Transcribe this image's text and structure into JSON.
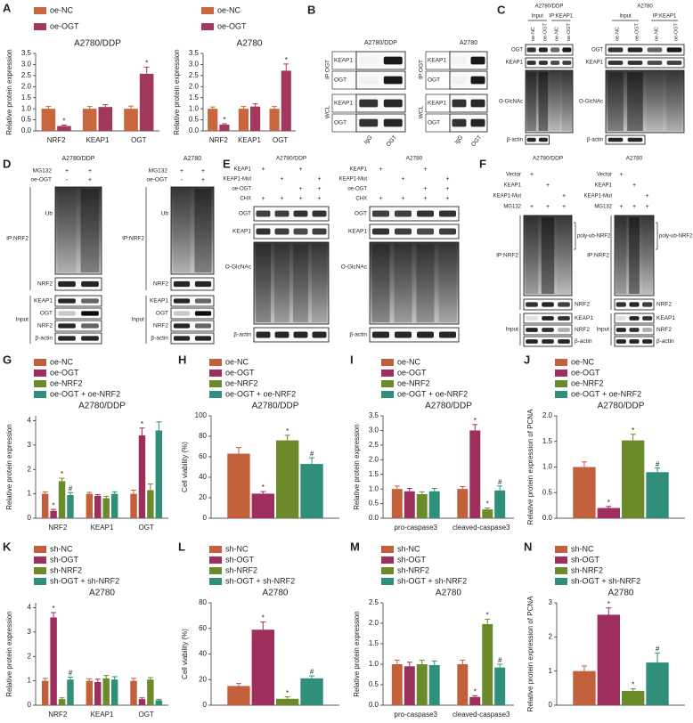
{
  "chart_data": [
    {
      "type": "bar",
      "panel": "A",
      "title": "A2780/DDP",
      "y_label": "Relative protein expression",
      "categories": [
        "NRF2",
        "KEAP1",
        "OGT"
      ],
      "series": [
        {
          "name": "oe-NC",
          "color": "#c8673e",
          "values": [
            1,
            1,
            1
          ],
          "errors": [
            0.1,
            0.1,
            0.12
          ]
        },
        {
          "name": "oe-OGT",
          "color": "#a3385e",
          "values": [
            0.22,
            1.08,
            2.58
          ],
          "errors": [
            0.04,
            0.1,
            0.3
          ],
          "markers": [
            "*",
            null,
            "*"
          ]
        }
      ],
      "ylim": [
        0,
        3.5
      ],
      "yticks": [
        {
          "value": 0,
          "label": "0.0"
        },
        0.5,
        {
          "value": 1,
          "label": "1.0"
        },
        1.5,
        {
          "value": 2,
          "label": "2.0"
        },
        2.5,
        {
          "value": 3,
          "label": "3.0"
        },
        3.5
      ]
    },
    {
      "type": "bar",
      "title": "A2780",
      "y_label": "Relative protein expression",
      "categories": [
        "NRF2",
        "KEAP1",
        "OGT"
      ],
      "series": [
        {
          "name": "oe-NC",
          "color": "#c8673e",
          "values": [
            1,
            1,
            1
          ],
          "errors": [
            0.08,
            0.1,
            0.1
          ]
        },
        {
          "name": "oe-OGT",
          "color": "#a3385e",
          "values": [
            0.28,
            1.1,
            2.72
          ],
          "errors": [
            0.04,
            0.12,
            0.3
          ],
          "markers": [
            "*",
            null,
            "*"
          ]
        }
      ],
      "ylim": [
        0,
        3.5
      ],
      "yticks": [
        {
          "value": 0,
          "label": "0.0"
        },
        0.5,
        {
          "value": 1,
          "label": "1.0"
        },
        1.5,
        {
          "value": 2,
          "label": "2.0"
        },
        2.5,
        {
          "value": 3,
          "label": "3.0"
        },
        3.5
      ]
    },
    {
      "type": "bar",
      "panel": "G",
      "title": "A2780/DDP",
      "y_label": "Relative protein expression",
      "categories": [
        "NRF2",
        "KEAP1",
        "OGT"
      ],
      "series": [
        {
          "name": "oe-NC",
          "color": "#c2603c",
          "values": [
            1,
            1,
            1
          ],
          "errors": [
            0.08,
            0.06,
            0.15
          ]
        },
        {
          "name": "oe-OGT",
          "color": "#9e2f5c",
          "values": [
            0.3,
            0.92,
            3.4
          ],
          "errors": [
            0.06,
            0.05,
            0.3
          ],
          "markers": [
            "*",
            null,
            "*"
          ]
        },
        {
          "name": "oe-NRF2",
          "color": "#6b8a2a",
          "values": [
            1.52,
            0.82,
            1.15
          ],
          "errors": [
            0.12,
            0.08,
            0.25
          ],
          "markers": [
            "*",
            null,
            null
          ]
        },
        {
          "name": "oe-OGT + oe-NRF2",
          "color": "#2f8f7a",
          "values": [
            0.95,
            1.0,
            3.6
          ],
          "errors": [
            0.1,
            0.08,
            0.35
          ],
          "markers": [
            "#",
            null,
            null
          ]
        }
      ],
      "ylim": [
        0,
        4.2
      ],
      "yticks": [
        0,
        1,
        2,
        3,
        4
      ]
    },
    {
      "type": "bar",
      "panel": "H",
      "title": "A2780/DDP",
      "y_label": "Cell viability (%)",
      "categories": [
        null
      ],
      "series": [
        {
          "name": "oe-NC",
          "color": "#c2603c",
          "values": [
            63
          ],
          "errors": [
            6
          ]
        },
        {
          "name": "oe-OGT",
          "color": "#9e2f5c",
          "values": [
            24
          ],
          "errors": [
            2
          ],
          "markers": [
            "*"
          ]
        },
        {
          "name": "oe-NRF2",
          "color": "#6b8a2a",
          "values": [
            76
          ],
          "errors": [
            5
          ],
          "markers": [
            "*"
          ]
        },
        {
          "name": "oe-OGT + oe-NRF2",
          "color": "#2f8f7a",
          "values": [
            53
          ],
          "errors": [
            6
          ],
          "markers": [
            "#"
          ]
        }
      ],
      "ylim": [
        0,
        100
      ],
      "yticks": [
        0,
        20,
        40,
        60,
        80,
        100
      ]
    },
    {
      "type": "bar",
      "panel": "I",
      "title": "A2780/DDP",
      "y_label": "Relative protein expression",
      "categories": [
        "pro-caspase3",
        "cleaved-caspase3"
      ],
      "series": [
        {
          "name": "oe-NC",
          "color": "#c2603c",
          "values": [
            1,
            1
          ],
          "errors": [
            0.1,
            0.08
          ]
        },
        {
          "name": "oe-OGT",
          "color": "#9e2f5c",
          "values": [
            0.92,
            3.0
          ],
          "errors": [
            0.1,
            0.2
          ],
          "markers": [
            null,
            "*"
          ]
        },
        {
          "name": "oe-NRF2",
          "color": "#6b8a2a",
          "values": [
            0.82,
            0.3
          ],
          "errors": [
            0.08,
            0.05
          ],
          "markers": [
            null,
            "*"
          ]
        },
        {
          "name": "oe-OGT + oe-NRF2",
          "color": "#2f8f7a",
          "values": [
            0.92,
            0.95
          ],
          "errors": [
            0.1,
            0.15
          ],
          "markers": [
            null,
            "#"
          ]
        }
      ],
      "ylim": [
        0,
        3.5
      ],
      "yticks": [
        {
          "value": 0,
          "label": "0.0"
        },
        0.5,
        {
          "value": 1,
          "label": "1.0"
        },
        1.5,
        {
          "value": 2,
          "label": "2.0"
        },
        2.5,
        {
          "value": 3,
          "label": "3.0"
        },
        3.5
      ]
    },
    {
      "type": "bar",
      "panel": "J",
      "title": "A2780/DDP",
      "y_label": "Relative protein expression of PCNA",
      "categories": [
        null
      ],
      "series": [
        {
          "name": "oe-NC",
          "color": "#c2603c",
          "values": [
            1.0
          ],
          "errors": [
            0.1
          ]
        },
        {
          "name": "oe-OGT",
          "color": "#9e2f5c",
          "values": [
            0.2
          ],
          "errors": [
            0.03
          ],
          "markers": [
            "*"
          ]
        },
        {
          "name": "oe-NRF2",
          "color": "#6b8a2a",
          "values": [
            1.52
          ],
          "errors": [
            0.12
          ],
          "markers": [
            "*"
          ]
        },
        {
          "name": "oe-OGT + oe-NRF2",
          "color": "#2f8f7a",
          "values": [
            0.9
          ],
          "errors": [
            0.08
          ],
          "markers": [
            "#"
          ]
        }
      ],
      "ylim": [
        0,
        2.0
      ],
      "yticks": [
        {
          "value": 0,
          "label": "0.0"
        },
        0.5,
        {
          "value": 1,
          "label": "1.0"
        },
        1.5,
        {
          "value": 2,
          "label": "2.0"
        }
      ]
    },
    {
      "type": "bar",
      "panel": "K",
      "title": "A2780",
      "y_label": "Relative protein expression",
      "categories": [
        "NRF2",
        "KEAP1",
        "OGT"
      ],
      "series": [
        {
          "name": "sh-NC",
          "color": "#c2603c",
          "values": [
            1,
            1,
            1
          ],
          "errors": [
            0.1,
            0.08,
            0.1
          ]
        },
        {
          "name": "sh-OGT",
          "color": "#9e2f5c",
          "values": [
            3.6,
            0.95,
            0.25
          ],
          "errors": [
            0.2,
            0.12,
            0.05
          ],
          "markers": [
            "*",
            null,
            null
          ]
        },
        {
          "name": "sh-NRF2",
          "color": "#6b8a2a",
          "values": [
            0.25,
            1.1,
            1.05
          ],
          "errors": [
            0.05,
            0.12,
            0.08
          ]
        },
        {
          "name": "sh-OGT + sh-NRF2",
          "color": "#2f8f7a",
          "values": [
            1.05,
            1.05,
            0.2
          ],
          "errors": [
            0.1,
            0.12,
            0.04
          ],
          "markers": [
            "#",
            null,
            null
          ]
        }
      ],
      "ylim": [
        0,
        4.2
      ],
      "yticks": [
        0,
        1,
        2,
        3,
        4
      ]
    },
    {
      "type": "bar",
      "panel": "L",
      "title": "A2780",
      "y_label": "Cell viability (%)",
      "categories": [
        null
      ],
      "series": [
        {
          "name": "sh-NC",
          "color": "#c2603c",
          "values": [
            15
          ],
          "errors": [
            2
          ]
        },
        {
          "name": "sh-OGT",
          "color": "#9e2f5c",
          "values": [
            59
          ],
          "errors": [
            6
          ],
          "markers": [
            "*"
          ]
        },
        {
          "name": "sh-NRF2",
          "color": "#6b8a2a",
          "values": [
            5
          ],
          "errors": [
            1.5
          ],
          "markers": [
            "*"
          ]
        },
        {
          "name": "sh-OGT + sh-NRF2",
          "color": "#2f8f7a",
          "values": [
            21
          ],
          "errors": [
            2
          ],
          "markers": [
            "#"
          ]
        }
      ],
      "ylim": [
        0,
        80
      ],
      "yticks": [
        0,
        20,
        40,
        60,
        80
      ]
    },
    {
      "type": "bar",
      "panel": "M",
      "title": "A2780",
      "y_label": "Relative protein expression",
      "categories": [
        "pro-caspase3",
        "cleaved-caspase3"
      ],
      "series": [
        {
          "name": "sh-NC",
          "color": "#c2603c",
          "values": [
            1,
            1
          ],
          "errors": [
            0.1,
            0.1
          ]
        },
        {
          "name": "sh-OGT",
          "color": "#9e2f5c",
          "values": [
            0.95,
            0.2
          ],
          "errors": [
            0.1,
            0.03
          ],
          "markers": [
            null,
            "*"
          ]
        },
        {
          "name": "sh-NRF2",
          "color": "#6b8a2a",
          "values": [
            1.0,
            1.98
          ],
          "errors": [
            0.1,
            0.12
          ],
          "markers": [
            null,
            "*"
          ]
        },
        {
          "name": "sh-OGT + sh-NRF2",
          "color": "#2f8f7a",
          "values": [
            0.98,
            0.92
          ],
          "errors": [
            0.1,
            0.08
          ],
          "markers": [
            null,
            "#"
          ]
        }
      ],
      "ylim": [
        0,
        2.5
      ],
      "yticks": [
        {
          "value": 0,
          "label": "0.0"
        },
        0.5,
        {
          "value": 1,
          "label": "1.0"
        },
        1.5,
        {
          "value": 2,
          "label": "2.0"
        },
        2.5
      ]
    },
    {
      "type": "bar",
      "panel": "N",
      "title": "A2780",
      "y_label": "Relative protein expression of PCNA",
      "categories": [
        null
      ],
      "series": [
        {
          "name": "sh-NC",
          "color": "#c2603c",
          "values": [
            1.0
          ],
          "errors": [
            0.15
          ]
        },
        {
          "name": "sh-OGT",
          "color": "#9e2f5c",
          "values": [
            2.65
          ],
          "errors": [
            0.2
          ],
          "markers": [
            "*"
          ]
        },
        {
          "name": "sh-NRF2",
          "color": "#6b8a2a",
          "values": [
            0.42
          ],
          "errors": [
            0.06
          ],
          "markers": [
            "*"
          ]
        },
        {
          "name": "sh-OGT + sh-NRF2",
          "color": "#2f8f7a",
          "values": [
            1.25
          ],
          "errors": [
            0.28
          ],
          "markers": [
            "#"
          ]
        }
      ],
      "ylim": [
        0,
        3
      ],
      "yticks": [
        0,
        1,
        2,
        3
      ]
    }
  ],
  "blots": [
    {
      "panel": "B",
      "cell_lines": [
        "A2780/DDP",
        "A2780"
      ],
      "groups": [
        "IP:OGT",
        "WCL"
      ],
      "rows": [
        "KEAP1",
        "OGT"
      ],
      "lanes": [
        "IgG",
        "OGT"
      ]
    },
    {
      "panel": "C",
      "cell_lines": [
        "A2780/DDP",
        "A2780"
      ],
      "headers": [
        "Input",
        "IP:KEAP1"
      ],
      "lanes": [
        "oe-NC",
        "oe-OGT"
      ],
      "rows": [
        "OGT",
        "KEAP1",
        "O-GlcNAc",
        "β-actin"
      ]
    },
    {
      "panel": "D",
      "cell_lines": [
        "A2780/DDP",
        "A2780"
      ],
      "treatments": [
        "MG132",
        "oe-OGT"
      ],
      "signs": [
        [
          "+",
          "+"
        ],
        [
          "-",
          "+"
        ]
      ],
      "groups": [
        "IP:NRF2",
        "Input"
      ],
      "ip_rows": [
        "Ub",
        "NRF2"
      ],
      "input_rows": [
        "KEAP1",
        "OGT",
        "NRF2",
        "β-actin"
      ]
    },
    {
      "panel": "E",
      "cell_lines": [
        "A2780/DDP",
        "A2780"
      ],
      "treatments": [
        "KEAP1",
        "KEAP1-Mut",
        "oe-OGT",
        "CHX"
      ],
      "signs": [
        [
          "+",
          null,
          "+",
          null
        ],
        [
          null,
          "+",
          null,
          "+"
        ],
        [
          null,
          null,
          "+",
          "+"
        ],
        [
          "+",
          "+",
          "+",
          "+"
        ]
      ],
      "rows": [
        "OGT",
        "KEAP1",
        "O-GlcNAc",
        "β-actin"
      ]
    },
    {
      "panel": "F",
      "cell_lines": [
        "A2780/DDP",
        "A2780"
      ],
      "treatments": [
        "Vector",
        "KEAP1",
        "KEAP1-Mut",
        "MG132"
      ],
      "signs": [
        [
          "+",
          null,
          null
        ],
        [
          null,
          "+",
          null
        ],
        [
          null,
          null,
          "+"
        ],
        [
          "+",
          "+",
          "+"
        ]
      ],
      "groups": [
        "IP:NRF2",
        "Input"
      ],
      "ip_rows": [
        "poly-ub-NRF2",
        "NRF2"
      ],
      "input_rows": [
        "KEAP1",
        "NRF2",
        "β-actin"
      ]
    }
  ]
}
